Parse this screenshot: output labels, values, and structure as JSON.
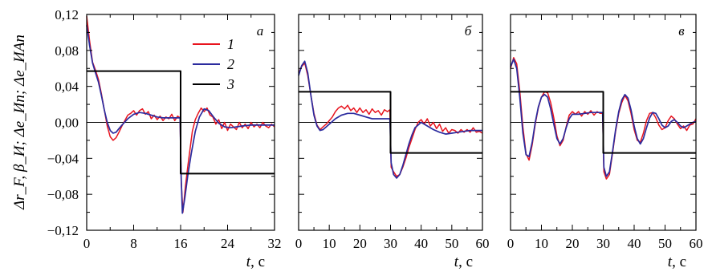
{
  "chart_data": {
    "type": "line",
    "ylabel": "Δr_F, β_И; Δe_Ип; Δe_ИАп",
    "ylim": [
      -0.12,
      0.12
    ],
    "yticks": [
      "0,12",
      "0,08",
      "0,04",
      "0,00",
      "−0,04",
      "−0,08",
      "−0,12"
    ],
    "legend": {
      "placement": "top-right of panel а",
      "entries": [
        {
          "label": "1",
          "color": "#e8141e"
        },
        {
          "label": "2",
          "color": "#2b2b9e"
        },
        {
          "label": "3",
          "color": "#000000"
        }
      ]
    },
    "panels": [
      {
        "label": "а",
        "xlabel": "t, с",
        "xlim": [
          0,
          32
        ],
        "xticks": [
          "0",
          "8",
          "16",
          "24",
          "32"
        ],
        "series": [
          {
            "name": "1",
            "color": "#e8141e",
            "x": [
              0,
              0.5,
              1,
              1.5,
              2,
              2.5,
              3,
              3.5,
              4,
              4.5,
              5,
              5.5,
              6,
              6.5,
              7,
              7.5,
              8,
              8.5,
              9,
              9.5,
              10,
              10.5,
              11,
              11.5,
              12,
              12.5,
              13,
              13.5,
              14,
              14.5,
              15,
              15.5,
              15.9,
              16.1,
              16.4,
              16.8,
              17.2,
              17.6,
              18,
              18.5,
              19,
              19.5,
              20,
              20.5,
              21,
              21.5,
              22,
              22.5,
              23,
              23.5,
              24,
              24.5,
              25,
              25.5,
              26,
              26.5,
              27,
              27.5,
              28,
              28.5,
              29,
              29.5,
              30,
              30.5,
              31,
              31.5,
              32
            ],
            "y": [
              0.118,
              0.09,
              0.067,
              0.058,
              0.048,
              0.032,
              0.014,
              -0.004,
              -0.016,
              -0.02,
              -0.017,
              -0.011,
              -0.004,
              0.002,
              0.008,
              0.01,
              0.013,
              0.008,
              0.013,
              0.015,
              0.009,
              0.012,
              0.004,
              0.008,
              0.003,
              0.007,
              0.002,
              0.006,
              0.004,
              0.009,
              0.002,
              0.007,
              0.005,
              -0.065,
              -0.1,
              -0.072,
              -0.05,
              -0.03,
              -0.01,
              0.003,
              0.01,
              0.016,
              0.012,
              0.016,
              0.008,
              0.006,
              -0.002,
              0.003,
              -0.007,
              0.0,
              -0.009,
              -0.002,
              -0.005,
              -0.008,
              0.0,
              -0.006,
              -0.002,
              -0.007,
              0.0,
              -0.005,
              -0.002,
              -0.006,
              0.0,
              -0.004,
              -0.006,
              -0.002,
              -0.005
            ]
          },
          {
            "name": "2",
            "color": "#2b2b9e",
            "x": [
              0,
              0.5,
              1,
              1.5,
              2,
              2.5,
              3,
              3.5,
              4,
              4.5,
              5,
              5.5,
              6,
              7,
              8,
              9,
              10,
              11,
              12,
              13,
              14,
              15,
              15.9,
              16.1,
              16.3,
              16.7,
              17.2,
              17.8,
              18.5,
              19.2,
              20,
              20.8,
              21.6,
              22.5,
              23.5,
              24.5,
              25.5,
              26.5,
              28,
              30,
              32
            ],
            "y": [
              0.108,
              0.085,
              0.066,
              0.055,
              0.045,
              0.03,
              0.014,
              0.0,
              -0.009,
              -0.012,
              -0.011,
              -0.007,
              -0.003,
              0.004,
              0.009,
              0.011,
              0.01,
              0.008,
              0.006,
              0.005,
              0.005,
              0.005,
              0.005,
              -0.06,
              -0.101,
              -0.085,
              -0.06,
              -0.035,
              -0.01,
              0.006,
              0.015,
              0.013,
              0.006,
              -0.001,
              -0.005,
              -0.006,
              -0.005,
              -0.004,
              -0.003,
              -0.003,
              -0.003
            ]
          },
          {
            "name": "3",
            "color": "#000000",
            "x": [
              0,
              16,
              16,
              32
            ],
            "y": [
              0.057,
              0.057,
              -0.057,
              -0.057
            ]
          }
        ]
      },
      {
        "label": "б",
        "xlabel": "t, с",
        "xlim": [
          0,
          60
        ],
        "xticks": [
          "0",
          "10",
          "20",
          "30",
          "40",
          "50",
          "60"
        ],
        "series": [
          {
            "name": "1",
            "color": "#e8141e",
            "x": [
              0,
              1,
              2,
              3,
              4,
              5,
              6,
              7,
              8,
              9,
              10,
              11,
              12,
              13,
              14,
              15,
              16,
              17,
              18,
              19,
              20,
              21,
              22,
              23,
              24,
              25,
              26,
              27,
              28,
              29,
              29.8,
              30.2,
              31,
              32,
              33,
              34,
              35,
              36,
              37,
              38,
              39,
              40,
              41,
              42,
              43,
              44,
              45,
              46,
              47,
              48,
              49,
              50,
              51,
              52,
              53,
              54,
              55,
              56,
              57,
              58,
              59,
              60
            ],
            "y": [
              0.055,
              0.062,
              0.066,
              0.052,
              0.03,
              0.01,
              -0.003,
              -0.008,
              -0.005,
              -0.002,
              0.002,
              0.006,
              0.012,
              0.016,
              0.018,
              0.015,
              0.019,
              0.013,
              0.016,
              0.011,
              0.016,
              0.011,
              0.014,
              0.009,
              0.015,
              0.011,
              0.013,
              0.008,
              0.014,
              0.012,
              0.014,
              -0.05,
              -0.055,
              -0.06,
              -0.058,
              -0.05,
              -0.04,
              -0.028,
              -0.018,
              -0.008,
              0.0,
              0.003,
              -0.002,
              0.004,
              -0.004,
              0.0,
              -0.007,
              -0.002,
              -0.01,
              -0.006,
              -0.012,
              -0.008,
              -0.009,
              -0.012,
              -0.008,
              -0.011,
              -0.008,
              -0.011,
              -0.006,
              -0.011,
              -0.01,
              -0.012
            ]
          },
          {
            "name": "2",
            "color": "#2b2b9e",
            "x": [
              0,
              1,
              2,
              3,
              4,
              5,
              6,
              7,
              8,
              9,
              10,
              12,
              14,
              16,
              18,
              20,
              22,
              24,
              26,
              28,
              29.8,
              30.2,
              31,
              32,
              33,
              34,
              35,
              36,
              37,
              38,
              40,
              42,
              44,
              46,
              48,
              50,
              52,
              54,
              56,
              58,
              60
            ],
            "y": [
              0.052,
              0.063,
              0.068,
              0.055,
              0.03,
              0.008,
              -0.004,
              -0.009,
              -0.008,
              -0.005,
              -0.002,
              0.004,
              0.008,
              0.01,
              0.01,
              0.008,
              0.006,
              0.004,
              0.004,
              0.004,
              0.004,
              -0.045,
              -0.058,
              -0.062,
              -0.058,
              -0.048,
              -0.036,
              -0.024,
              -0.014,
              -0.006,
              0.0,
              -0.004,
              -0.008,
              -0.011,
              -0.013,
              -0.012,
              -0.011,
              -0.01,
              -0.009,
              -0.009,
              -0.009
            ]
          },
          {
            "name": "3",
            "color": "#000000",
            "x": [
              0,
              30,
              30,
              60
            ],
            "y": [
              0.034,
              0.034,
              -0.034,
              -0.034
            ]
          }
        ]
      },
      {
        "label": "в",
        "xlabel": "t, с",
        "xlim": [
          0,
          60
        ],
        "xticks": [
          "0",
          "10",
          "20",
          "30",
          "40",
          "50",
          "60"
        ],
        "series": [
          {
            "name": "1",
            "color": "#e8141e",
            "x": [
              0,
              1,
              2,
              3,
              4,
              5,
              6,
              7,
              8,
              9,
              10,
              11,
              12,
              13,
              14,
              15,
              16,
              17,
              18,
              19,
              20,
              21,
              22,
              23,
              24,
              25,
              26,
              27,
              28,
              29,
              29.8,
              30.2,
              31,
              32,
              33,
              34,
              35,
              36,
              37,
              38,
              39,
              40,
              41,
              42,
              43,
              44,
              45,
              46,
              47,
              48,
              49,
              50,
              51,
              52,
              53,
              54,
              55,
              56,
              57,
              58,
              59,
              60
            ],
            "y": [
              0.06,
              0.072,
              0.065,
              0.035,
              -0.005,
              -0.035,
              -0.042,
              -0.025,
              -0.002,
              0.016,
              0.028,
              0.034,
              0.033,
              0.022,
              0.005,
              -0.015,
              -0.026,
              -0.02,
              -0.005,
              0.008,
              0.012,
              0.009,
              0.012,
              0.007,
              0.012,
              0.009,
              0.013,
              0.008,
              0.012,
              0.01,
              0.01,
              -0.055,
              -0.063,
              -0.058,
              -0.035,
              -0.01,
              0.01,
              0.022,
              0.03,
              0.024,
              0.01,
              -0.008,
              -0.02,
              -0.022,
              -0.012,
              0.002,
              0.01,
              0.011,
              0.005,
              -0.003,
              -0.008,
              -0.006,
              0.002,
              0.007,
              0.004,
              -0.002,
              -0.007,
              -0.004,
              -0.009,
              -0.003,
              -0.002,
              0.004
            ]
          },
          {
            "name": "2",
            "color": "#2b2b9e",
            "x": [
              0,
              1,
              2,
              3,
              4,
              5,
              6,
              7,
              8,
              9,
              10,
              11,
              12,
              13,
              14,
              15,
              16,
              17,
              18,
              19,
              20,
              22,
              24,
              26,
              28,
              29.8,
              30.2,
              31,
              32,
              33,
              34,
              35,
              36,
              37,
              38,
              39,
              40,
              41,
              42,
              43,
              44,
              45,
              46,
              47,
              48,
              49,
              50,
              51,
              52,
              53,
              54,
              55,
              56,
              57,
              58,
              59,
              60
            ],
            "y": [
              0.062,
              0.07,
              0.06,
              0.028,
              -0.012,
              -0.036,
              -0.038,
              -0.022,
              0.0,
              0.017,
              0.028,
              0.031,
              0.028,
              0.015,
              -0.002,
              -0.018,
              -0.024,
              -0.018,
              -0.006,
              0.004,
              0.009,
              0.009,
              0.01,
              0.011,
              0.011,
              0.011,
              -0.05,
              -0.06,
              -0.055,
              -0.033,
              -0.008,
              0.012,
              0.025,
              0.031,
              0.027,
              0.014,
              -0.004,
              -0.018,
              -0.024,
              -0.018,
              -0.006,
              0.005,
              0.011,
              0.01,
              0.004,
              -0.003,
              -0.006,
              -0.004,
              0.001,
              0.003,
              0.0,
              -0.004,
              -0.006,
              -0.004,
              -0.002,
              0.0,
              0.001
            ]
          },
          {
            "name": "3",
            "color": "#000000",
            "x": [
              0,
              30,
              30,
              60
            ],
            "y": [
              0.034,
              0.034,
              -0.034,
              -0.034
            ]
          }
        ]
      }
    ]
  }
}
